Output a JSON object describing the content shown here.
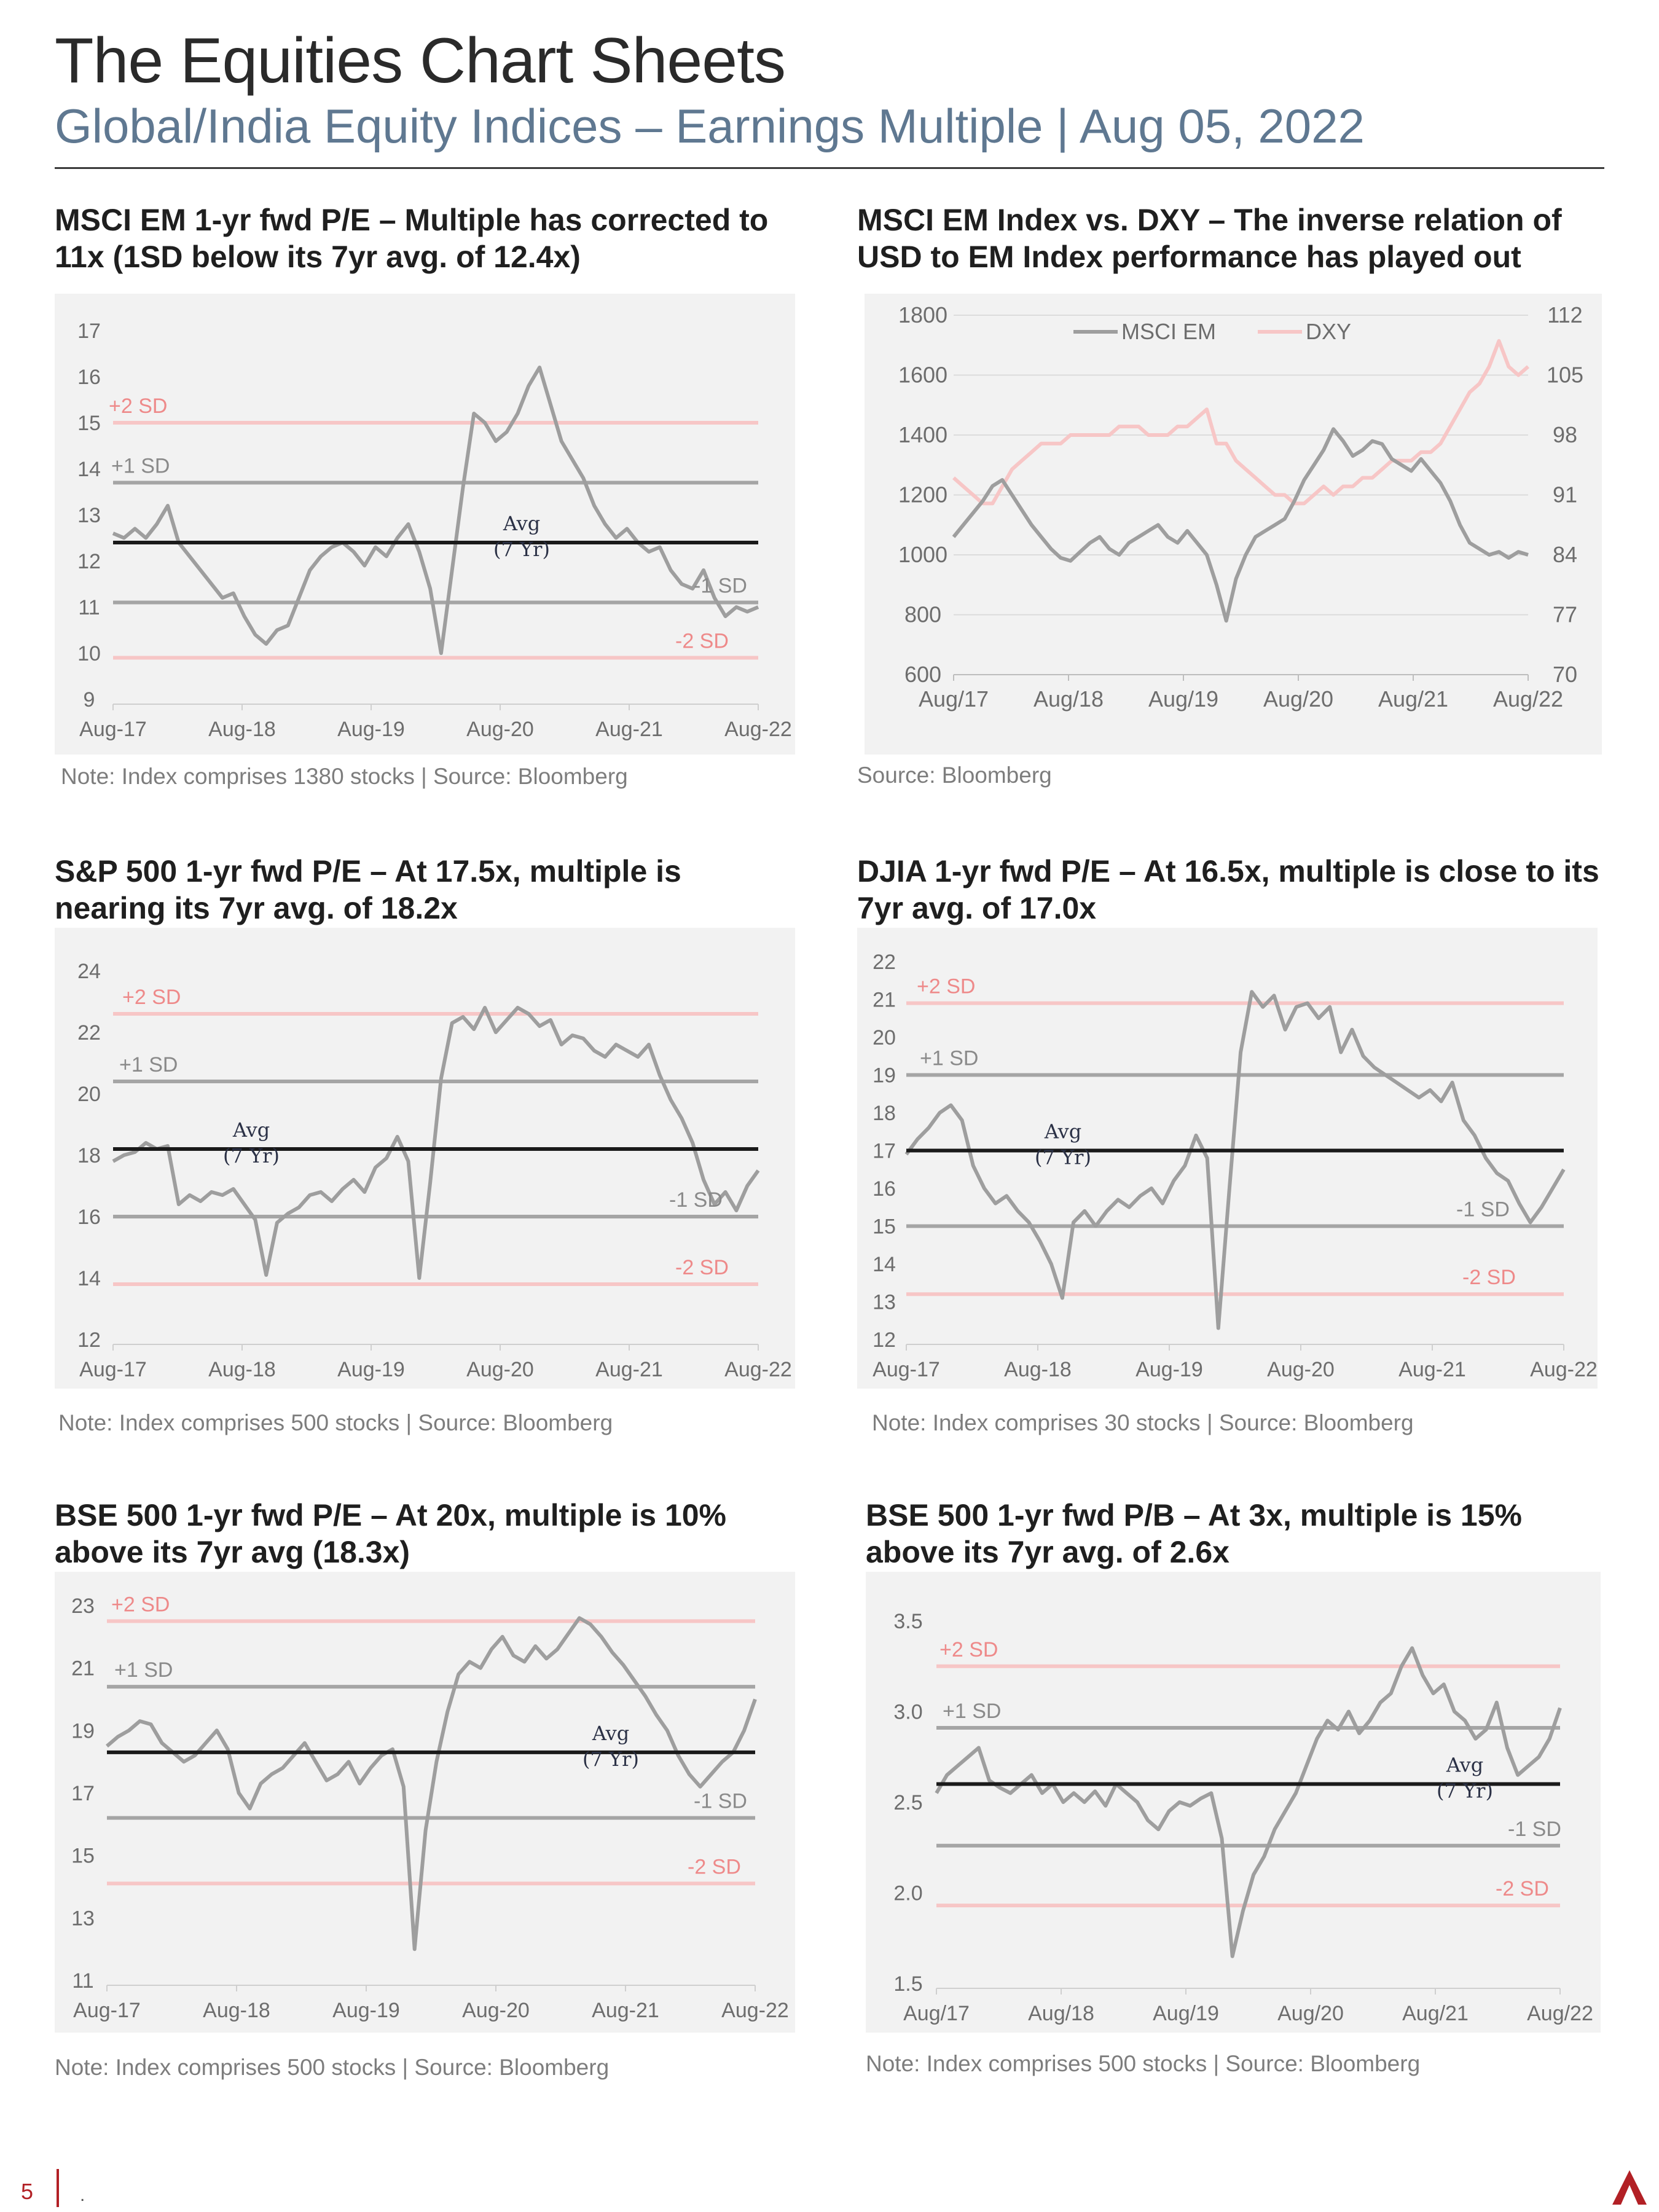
{
  "header": {
    "title": "The Equities Chart Sheets",
    "subtitle": "Global/India Equity Indices – Earnings Multiple | Aug 05, 2022"
  },
  "colors": {
    "price": "#9e9e9e",
    "avg": "#1a1a1a",
    "sd1": "#a5a5a5",
    "sd2": "#f7c6c6",
    "sd2_text": "#ee8a8a",
    "dxy": "#f7c6c6",
    "accent": "#b22025"
  },
  "footer": {
    "page": "5",
    "dot": "."
  },
  "panels": [
    {
      "id": "msci-em-pe",
      "title_line1": "MSCI EM 1-yr fwd P/E – Multiple has corrected to",
      "title_line2": "11x (1SD below its 7yr avg. of 12.4x)",
      "note": "Note: Index comprises 1380 stocks | Source: Bloomberg"
    },
    {
      "id": "msci-em-dxy",
      "title_line1": "MSCI EM Index vs. DXY – The inverse relation of",
      "title_line2": "USD to EM Index performance has played out",
      "note": "Source: Bloomberg"
    },
    {
      "id": "sp500-pe",
      "title_line1": "S&P 500 1-yr fwd P/E – At 17.5x, multiple is",
      "title_line2": "nearing its 7yr avg. of 18.2x",
      "note": "Note: Index comprises 500 stocks | Source: Bloomberg"
    },
    {
      "id": "djia-pe",
      "title_line1": "DJIA 1-yr fwd P/E – At 16.5x, multiple is close to its",
      "title_line2": "7yr avg. of 17.0x",
      "note": "Note: Index comprises 30 stocks | Source: Bloomberg"
    },
    {
      "id": "bse500-pe",
      "title_line1": "BSE 500 1-yr fwd P/E – At 20x, multiple is 10%",
      "title_line2": "above its 7yr avg (18.3x)",
      "note": "Note: Index comprises 500 stocks | Source: Bloomberg"
    },
    {
      "id": "bse500-pb",
      "title_line1": "BSE 500 1-yr fwd P/B – At 3x, multiple is 15%",
      "title_line2": "above its 7yr avg. of  2.6x",
      "note": "Note: Index comprises 500 stocks | Source: Bloomberg"
    }
  ],
  "chart_data": [
    {
      "type": "line",
      "xticks": [
        "Aug-17",
        "Aug-18",
        "Aug-19",
        "Aug-20",
        "Aug-21",
        "Aug-22"
      ],
      "yticks": [
        "17",
        "16",
        "15",
        "14",
        "13",
        "12",
        "11",
        "10",
        "9"
      ],
      "ylim": [
        9,
        17
      ],
      "avg": 12.4,
      "avg_label": "Avg",
      "avg_label2": "(7 Yr)",
      "plus2sd": 15.0,
      "plus1sd": 13.7,
      "minus1sd": 11.1,
      "minus2sd": 9.9,
      "labels": {
        "plus2": "+2 SD",
        "plus1": "+1 SD",
        "minus1": "-1 SD",
        "minus2": "-2 SD"
      },
      "series": [
        {
          "values": [
            12.6,
            12.5,
            12.7,
            12.5,
            12.8,
            13.2,
            12.4,
            12.1,
            11.8,
            11.5,
            11.2,
            11.3,
            10.8,
            10.4,
            10.2,
            10.5,
            10.6,
            11.2,
            11.8,
            12.1,
            12.3,
            12.4,
            12.2,
            11.9,
            12.3,
            12.1,
            12.5,
            12.8,
            12.2,
            11.4,
            10.0,
            11.8,
            13.6,
            15.2,
            15.0,
            14.6,
            14.8,
            15.2,
            15.8,
            16.2,
            15.4,
            14.6,
            14.2,
            13.8,
            13.2,
            12.8,
            12.5,
            12.7,
            12.4,
            12.2,
            12.3,
            11.8,
            11.5,
            11.4,
            11.8,
            11.2,
            10.8,
            11.0,
            10.9,
            11.0
          ]
        }
      ]
    },
    {
      "type": "line",
      "xticks": [
        "Aug/17",
        "Aug/18",
        "Aug/19",
        "Aug/20",
        "Aug/21",
        "Aug/22"
      ],
      "yticks_left": [
        "1800",
        "1600",
        "1400",
        "1200",
        "1000",
        "800",
        "600"
      ],
      "yticks_right": [
        "112",
        "105",
        "98",
        "91",
        "84",
        "77",
        "70"
      ],
      "ylim_left": [
        600,
        1800
      ],
      "ylim_right": [
        70,
        112
      ],
      "legend_position": "top",
      "series": [
        {
          "name": "MSCI EM",
          "axis": "left",
          "values": [
            1060,
            1100,
            1140,
            1180,
            1230,
            1250,
            1200,
            1150,
            1100,
            1060,
            1020,
            990,
            980,
            1010,
            1040,
            1060,
            1020,
            1000,
            1040,
            1060,
            1080,
            1100,
            1060,
            1040,
            1080,
            1040,
            1000,
            900,
            780,
            920,
            1000,
            1060,
            1080,
            1100,
            1120,
            1180,
            1250,
            1300,
            1350,
            1420,
            1380,
            1330,
            1350,
            1380,
            1370,
            1320,
            1300,
            1280,
            1320,
            1280,
            1240,
            1180,
            1100,
            1040,
            1020,
            1000,
            1010,
            990,
            1010,
            1000
          ]
        },
        {
          "name": "DXY",
          "axis": "right",
          "values": [
            93,
            92,
            91,
            90,
            90,
            92,
            94,
            95,
            96,
            97,
            97,
            97,
            98,
            98,
            98,
            98,
            98,
            99,
            99,
            99,
            98,
            98,
            98,
            99,
            99,
            100,
            101,
            97,
            97,
            95,
            94,
            93,
            92,
            91,
            91,
            90,
            90,
            91,
            92,
            91,
            92,
            92,
            93,
            93,
            94,
            95,
            95,
            95,
            96,
            96,
            97,
            99,
            101,
            103,
            104,
            106,
            109,
            106,
            105,
            106
          ]
        }
      ]
    },
    {
      "type": "line",
      "xticks": [
        "Aug-17",
        "Aug-18",
        "Aug-19",
        "Aug-20",
        "Aug-21",
        "Aug-22"
      ],
      "yticks": [
        "24",
        "22",
        "20",
        "18",
        "16",
        "14",
        "12"
      ],
      "ylim": [
        12,
        24
      ],
      "avg": 18.2,
      "avg_label": "Avg",
      "avg_label2": "(7 Yr)",
      "plus2sd": 22.6,
      "plus1sd": 20.4,
      "minus1sd": 16.0,
      "minus2sd": 13.8,
      "labels": {
        "plus2": "+2 SD",
        "plus1": "+1 SD",
        "minus1": "-1 SD",
        "minus2": "-2 SD"
      },
      "series": [
        {
          "values": [
            17.8,
            18.0,
            18.1,
            18.4,
            18.2,
            18.3,
            16.4,
            16.7,
            16.5,
            16.8,
            16.7,
            16.9,
            16.4,
            15.9,
            14.1,
            15.8,
            16.1,
            16.3,
            16.7,
            16.8,
            16.5,
            16.9,
            17.2,
            16.8,
            17.6,
            17.9,
            18.6,
            17.8,
            14.0,
            17.1,
            20.5,
            22.3,
            22.5,
            22.1,
            22.8,
            22.0,
            22.4,
            22.8,
            22.6,
            22.2,
            22.4,
            21.6,
            21.9,
            21.8,
            21.4,
            21.2,
            21.6,
            21.4,
            21.2,
            21.6,
            20.6,
            19.8,
            19.2,
            18.4,
            17.2,
            16.4,
            16.8,
            16.2,
            17.0,
            17.5
          ]
        }
      ]
    },
    {
      "type": "line",
      "xticks": [
        "Aug-17",
        "Aug-18",
        "Aug-19",
        "Aug-20",
        "Aug-21",
        "Aug-22"
      ],
      "yticks": [
        "22",
        "21",
        "20",
        "19",
        "18",
        "17",
        "16",
        "15",
        "14",
        "13",
        "12"
      ],
      "ylim": [
        12,
        22
      ],
      "avg": 17.0,
      "avg_label": "Avg",
      "avg_label2": "(7 Yr)",
      "plus2sd": 20.9,
      "plus1sd": 19.0,
      "minus1sd": 15.0,
      "minus2sd": 13.2,
      "labels": {
        "plus2": "+2 SD",
        "plus1": "+1 SD",
        "minus1": "-1 SD",
        "minus2": "-2 SD"
      },
      "series": [
        {
          "values": [
            16.9,
            17.3,
            17.6,
            18.0,
            18.2,
            17.8,
            16.6,
            16.0,
            15.6,
            15.8,
            15.4,
            15.1,
            14.6,
            14.0,
            13.1,
            15.1,
            15.4,
            15.0,
            15.4,
            15.7,
            15.5,
            15.8,
            16.0,
            15.6,
            16.2,
            16.6,
            17.4,
            16.8,
            12.3,
            16.0,
            19.6,
            21.2,
            20.8,
            21.1,
            20.2,
            20.8,
            20.9,
            20.5,
            20.8,
            19.6,
            20.2,
            19.5,
            19.2,
            19.0,
            18.8,
            18.6,
            18.4,
            18.6,
            18.3,
            18.8,
            17.8,
            17.4,
            16.8,
            16.4,
            16.2,
            15.6,
            15.1,
            15.5,
            16.0,
            16.5
          ]
        }
      ]
    },
    {
      "type": "line",
      "xticks": [
        "Aug-17",
        "Aug-18",
        "Aug-19",
        "Aug-20",
        "Aug-21",
        "Aug-22"
      ],
      "yticks": [
        "23",
        "21",
        "19",
        "17",
        "15",
        "13",
        "11"
      ],
      "ylim": [
        11,
        23
      ],
      "avg": 18.3,
      "avg_label": "Avg",
      "avg_label2": "(7 Yr)",
      "plus2sd": 22.5,
      "plus1sd": 20.4,
      "minus1sd": 16.2,
      "minus2sd": 14.1,
      "labels": {
        "plus2": "+2 SD",
        "plus1": "+1 SD",
        "minus1": "-1 SD",
        "minus2": "-2 SD"
      },
      "series": [
        {
          "values": [
            18.5,
            18.8,
            19.0,
            19.3,
            19.2,
            18.6,
            18.3,
            18.0,
            18.2,
            18.6,
            19.0,
            18.4,
            17.0,
            16.5,
            17.3,
            17.6,
            17.8,
            18.2,
            18.6,
            18.0,
            17.4,
            17.6,
            18.0,
            17.3,
            17.8,
            18.2,
            18.4,
            17.2,
            12.0,
            15.8,
            18.0,
            19.6,
            20.8,
            21.2,
            21.0,
            21.6,
            22.0,
            21.4,
            21.2,
            21.7,
            21.3,
            21.6,
            22.1,
            22.6,
            22.4,
            22.0,
            21.5,
            21.1,
            20.6,
            20.1,
            19.5,
            19.0,
            18.2,
            17.6,
            17.2,
            17.6,
            18.0,
            18.3,
            19.0,
            20.0
          ]
        }
      ]
    },
    {
      "type": "line",
      "xticks": [
        "Aug/17",
        "Aug/18",
        "Aug/19",
        "Aug/20",
        "Aug/21",
        "Aug/22"
      ],
      "yticks": [
        "3.5",
        "3.0",
        "2.5",
        "2.0",
        "1.5"
      ],
      "ylim": [
        1.5,
        3.5
      ],
      "avg": 2.6,
      "avg_label": "Avg",
      "avg_label2": "(7 Yr)",
      "plus2sd": 3.25,
      "plus1sd": 2.91,
      "minus1sd": 2.26,
      "minus2sd": 1.93,
      "labels": {
        "plus2": "+2 SD",
        "plus1": "+1 SD",
        "minus1": "-1 SD",
        "minus2": "-2 SD"
      },
      "series": [
        {
          "values": [
            2.55,
            2.65,
            2.7,
            2.75,
            2.8,
            2.62,
            2.58,
            2.55,
            2.6,
            2.65,
            2.55,
            2.6,
            2.5,
            2.55,
            2.5,
            2.56,
            2.48,
            2.6,
            2.55,
            2.5,
            2.4,
            2.35,
            2.45,
            2.5,
            2.48,
            2.52,
            2.55,
            2.3,
            1.65,
            1.9,
            2.1,
            2.2,
            2.35,
            2.45,
            2.55,
            2.7,
            2.85,
            2.95,
            2.9,
            3.0,
            2.88,
            2.95,
            3.05,
            3.1,
            3.25,
            3.35,
            3.2,
            3.1,
            3.15,
            3.0,
            2.95,
            2.85,
            2.9,
            3.05,
            2.8,
            2.65,
            2.7,
            2.75,
            2.85,
            3.02
          ]
        }
      ]
    }
  ]
}
